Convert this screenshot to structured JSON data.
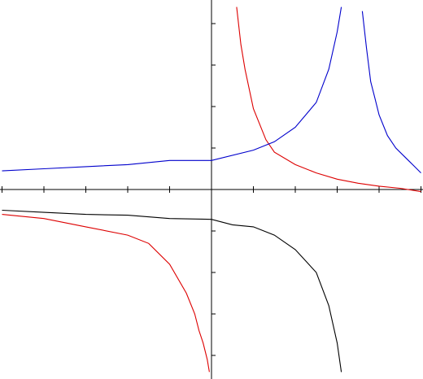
{
  "chart_data": {
    "type": "line",
    "title": "",
    "xlabel": "",
    "ylabel": "",
    "xlim": [
      -5,
      5
    ],
    "ylim": [
      -4.5,
      4.5
    ],
    "x_ticks": [
      -5,
      -4,
      -3,
      -2,
      -1,
      1,
      2,
      3,
      4,
      5
    ],
    "y_ticks": [
      -4,
      -3,
      -2,
      -1,
      1,
      2,
      3,
      4
    ],
    "grid": false,
    "legend": "none",
    "series": [
      {
        "color": "#dd0000",
        "segments": [
          {
            "x": [
              -5.0,
              -4.0,
              -3.0,
              -2.0,
              -1.5,
              -1.0,
              -0.6,
              -0.4,
              -0.3,
              -0.2,
              -0.1,
              -0.05
            ],
            "y": [
              -0.6,
              -0.7,
              -0.9,
              -1.1,
              -1.3,
              -1.8,
              -2.5,
              -3.0,
              -3.4,
              -3.7,
              -4.1,
              -4.4
            ]
          },
          {
            "x": [
              0.6,
              0.7,
              0.8,
              1.0,
              1.3,
              1.5,
              2.0,
              2.5,
              3.0,
              3.5,
              4.0,
              4.5,
              5.0
            ],
            "y": [
              4.4,
              3.5,
              2.9,
              1.95,
              1.2,
              0.9,
              0.6,
              0.4,
              0.25,
              0.15,
              0.08,
              0.03,
              -0.05
            ]
          }
        ]
      },
      {
        "color": "#0000cc",
        "segments": [
          {
            "x": [
              -5.0,
              -4.0,
              -3.0,
              -2.0,
              -1.0,
              0.0,
              1.0,
              1.5,
              2.0,
              2.5,
              2.8,
              3.0,
              3.1
            ],
            "y": [
              0.45,
              0.5,
              0.55,
              0.6,
              0.7,
              0.7,
              0.95,
              1.15,
              1.5,
              2.1,
              2.9,
              3.8,
              4.4
            ]
          },
          {
            "x": [
              3.6,
              3.7,
              3.8,
              3.9,
              4.0,
              4.2,
              4.4,
              4.7,
              5.0
            ],
            "y": [
              4.3,
              3.4,
              2.6,
              2.2,
              1.8,
              1.3,
              1.0,
              0.7,
              0.4
            ]
          }
        ]
      },
      {
        "color": "#000000",
        "segments": [
          {
            "x": [
              -5.0,
              -4.0,
              -3.0,
              -2.0,
              -1.0,
              0.0,
              0.5,
              1.0,
              1.5,
              2.0,
              2.5,
              2.8,
              3.0,
              3.1
            ],
            "y": [
              -0.5,
              -0.55,
              -0.6,
              -0.62,
              -0.7,
              -0.72,
              -0.85,
              -0.9,
              -1.1,
              -1.45,
              -2.0,
              -2.8,
              -3.7,
              -4.4
            ]
          }
        ]
      }
    ]
  }
}
